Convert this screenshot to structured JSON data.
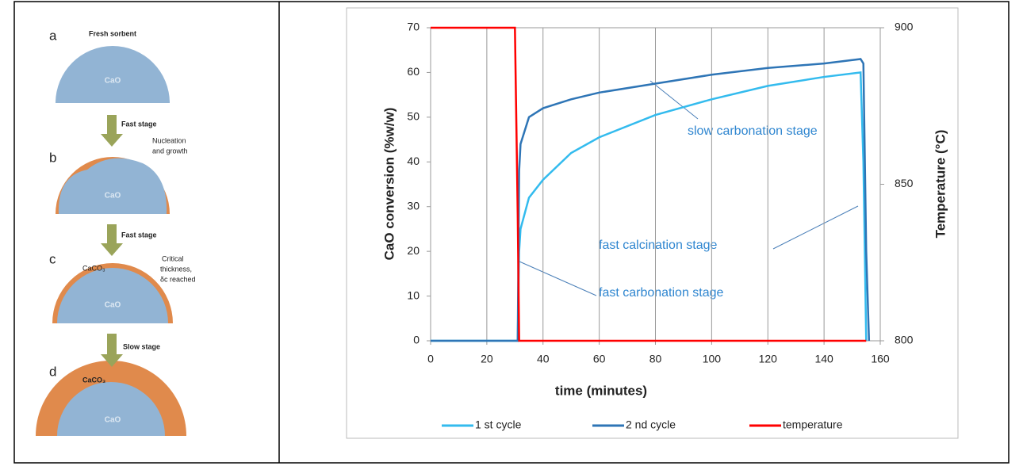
{
  "diagram": {
    "panels": [
      {
        "letter": "a",
        "title": "Fresh sorbent",
        "core": "CaO"
      },
      {
        "letter": "b",
        "note": [
          "Nucleation",
          "and growth"
        ],
        "core": "CaO"
      },
      {
        "letter": "c",
        "shell": "CaCO₃",
        "note": [
          "Critical",
          "thickness,",
          "δc reached"
        ],
        "core": "CaO"
      },
      {
        "letter": "d",
        "shell": "CaCO₃",
        "core": "CaO"
      }
    ],
    "arrows": [
      "Fast stage",
      "Fast stage",
      "Slow stage"
    ]
  },
  "chart_data": {
    "type": "line",
    "xlabel": "time (minutes)",
    "ylabel": "CaO conversion (%w/w)",
    "y2label": "Temperature (°C)",
    "x": [
      0,
      30,
      31,
      31.5,
      32,
      35,
      40,
      50,
      60,
      80,
      100,
      120,
      140,
      153,
      154,
      155,
      156
    ],
    "series": [
      {
        "name": "1 st cycle",
        "color": "#33bbee",
        "values": [
          0,
          0,
          0,
          20,
          25,
          32,
          36,
          42,
          45.5,
          50.5,
          54,
          57,
          59,
          60,
          40,
          0,
          null
        ]
      },
      {
        "name": "2 nd cycle",
        "color": "#2e75b6",
        "values": [
          0,
          0,
          0,
          38,
          44,
          50,
          52,
          54,
          55.5,
          57.5,
          59.5,
          61,
          62,
          63,
          62,
          20,
          0
        ]
      },
      {
        "name": "temperature",
        "color": "#ff0000",
        "axis": "y2",
        "values": [
          900,
          900,
          840,
          800,
          800,
          800,
          800,
          800,
          800,
          800,
          800,
          800,
          800,
          800,
          800,
          800,
          null
        ]
      }
    ],
    "annotations": [
      "slow carbonation stage",
      "fast calcination stage",
      "fast carbonation stage"
    ],
    "xlim": [
      0,
      160
    ],
    "xticks": [
      0,
      20,
      40,
      60,
      80,
      100,
      120,
      140,
      160
    ],
    "ylim": [
      0,
      70
    ],
    "yticks": [
      0,
      10,
      20,
      30,
      40,
      50,
      60,
      70
    ],
    "y2lim": [
      800,
      900
    ],
    "y2ticks": [
      800,
      850,
      900
    ],
    "grid": "x",
    "legend": "bottom"
  }
}
